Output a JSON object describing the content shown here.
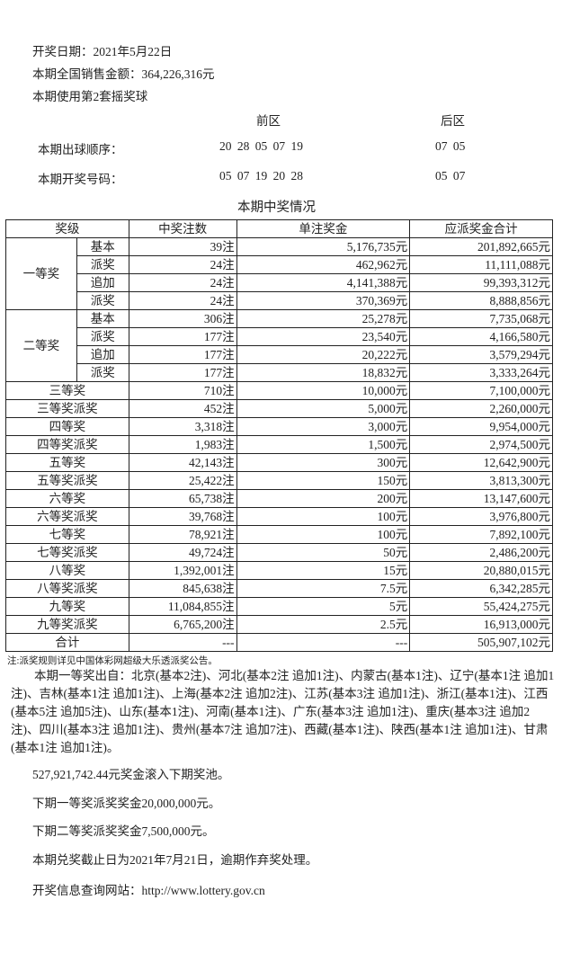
{
  "info": {
    "date": "开奖日期：2021年5月22日",
    "sales": "本期全国销售金额：364,226,316元",
    "balls": "本期使用第2套摇奖球"
  },
  "draw": {
    "front_label": "前区",
    "back_label": "后区",
    "order_label": "本期出球顺序：",
    "order_front": "20 28 05 07 19",
    "order_back": "07 05",
    "result_label": "本期开奖号码：",
    "result_front": "05 07 19 20 28",
    "result_back": "05 07"
  },
  "table": {
    "title": "本期中奖情况",
    "headers": [
      "奖级",
      "中奖注数",
      "单注奖金",
      "应派奖金合计"
    ],
    "group_rows": [
      {
        "group": "一等奖",
        "rows": [
          [
            "基本",
            "39注",
            "5,176,735元",
            "201,892,665元"
          ],
          [
            "派奖",
            "24注",
            "462,962元",
            "11,111,088元"
          ],
          [
            "追加",
            "24注",
            "4,141,388元",
            "99,393,312元"
          ],
          [
            "派奖",
            "24注",
            "370,369元",
            "8,888,856元"
          ]
        ]
      },
      {
        "group": "二等奖",
        "rows": [
          [
            "基本",
            "306注",
            "25,278元",
            "7,735,068元"
          ],
          [
            "派奖",
            "177注",
            "23,540元",
            "4,166,580元"
          ],
          [
            "追加",
            "177注",
            "20,222元",
            "3,579,294元"
          ],
          [
            "派奖",
            "177注",
            "18,832元",
            "3,333,264元"
          ]
        ]
      }
    ],
    "rows": [
      [
        "三等奖",
        "710注",
        "10,000元",
        "7,100,000元"
      ],
      [
        "三等奖派奖",
        "452注",
        "5,000元",
        "2,260,000元"
      ],
      [
        "四等奖",
        "3,318注",
        "3,000元",
        "9,954,000元"
      ],
      [
        "四等奖派奖",
        "1,983注",
        "1,500元",
        "2,974,500元"
      ],
      [
        "五等奖",
        "42,143注",
        "300元",
        "12,642,900元"
      ],
      [
        "五等奖派奖",
        "25,422注",
        "150元",
        "3,813,300元"
      ],
      [
        "六等奖",
        "65,738注",
        "200元",
        "13,147,600元"
      ],
      [
        "六等奖派奖",
        "39,768注",
        "100元",
        "3,976,800元"
      ],
      [
        "七等奖",
        "78,921注",
        "100元",
        "7,892,100元"
      ],
      [
        "七等奖派奖",
        "49,724注",
        "50元",
        "2,486,200元"
      ],
      [
        "八等奖",
        "1,392,001注",
        "15元",
        "20,880,015元"
      ],
      [
        "八等奖派奖",
        "845,638注",
        "7.5元",
        "6,342,285元"
      ],
      [
        "九等奖",
        "11,084,855注",
        "5元",
        "55,424,275元"
      ],
      [
        "九等奖派奖",
        "6,765,200注",
        "2.5元",
        "16,913,000元"
      ],
      [
        "合计",
        "---",
        "---",
        "505,907,102元"
      ]
    ]
  },
  "note": "注:派奖规则详见中国体彩网超级大乐透派奖公告。",
  "winners": "本期一等奖出自：北京(基本2注)、河北(基本2注 追加1注)、内蒙古(基本1注)、辽宁(基本1注 追加1注)、吉林(基本1注 追加1注)、上海(基本2注 追加2注)、江苏(基本3注 追加1注)、浙江(基本1注)、江西(基本5注 追加5注)、山东(基本1注)、河南(基本1注)、广东(基本3注 追加1注)、重庆(基本3注 追加2注)、四川(基本3注 追加1注)、贵州(基本7注 追加7注)、西藏(基本1注)、陕西(基本1注 追加1注)、甘肃(基本1注 追加1注)。",
  "rollover": "527,921,742.44元奖金滚入下期奖池。",
  "next_first": "下期一等奖派奖奖金20,000,000元。",
  "next_second": "下期二等奖派奖奖金7,500,000元。",
  "deadline": "本期兑奖截止日为2021年7月21日，逾期作弃奖处理。",
  "website": "开奖信息查询网站：http://www.lottery.gov.cn"
}
